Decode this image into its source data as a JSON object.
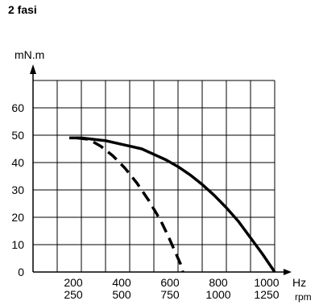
{
  "heading": "2 fasi",
  "chart_data": {
    "type": "line",
    "ylabel": "mN.m",
    "xlabel_primary": "Hz",
    "xlabel_secondary": "rpm",
    "ylim": [
      0,
      70
    ],
    "y_ticks": [
      0,
      10,
      20,
      30,
      40,
      50,
      60
    ],
    "y_tick_labels": [
      "0",
      "10",
      "20",
      "30",
      "40",
      "50",
      "60"
    ],
    "x_lim_hz": [
      0,
      1000
    ],
    "x_ticks_hz": [
      200,
      400,
      600,
      800,
      1000
    ],
    "x_tick_labels_hz": [
      "200",
      "400",
      "600",
      "800",
      "1000"
    ],
    "x_tick_labels_rpm": [
      "250",
      "500",
      "750",
      "1000",
      "1250"
    ],
    "grid": true,
    "series": [
      {
        "style": "solid",
        "x": [
          150,
          200,
          250,
          300,
          350,
          400,
          450,
          500,
          550,
          600,
          650,
          700,
          750,
          800,
          850,
          900,
          950,
          1000
        ],
        "y": [
          49,
          49,
          48.5,
          48,
          47,
          46,
          45,
          43,
          41,
          38.5,
          35.5,
          32,
          28,
          23.5,
          18.5,
          12.5,
          6.5,
          0
        ]
      },
      {
        "style": "dashed",
        "x": [
          180,
          230,
          280,
          330,
          380,
          430,
          480,
          530,
          560,
          590,
          610,
          620
        ],
        "y": [
          49,
          48.5,
          46,
          42.5,
          38,
          32.5,
          26,
          18.5,
          13,
          7,
          3,
          0
        ]
      }
    ]
  }
}
